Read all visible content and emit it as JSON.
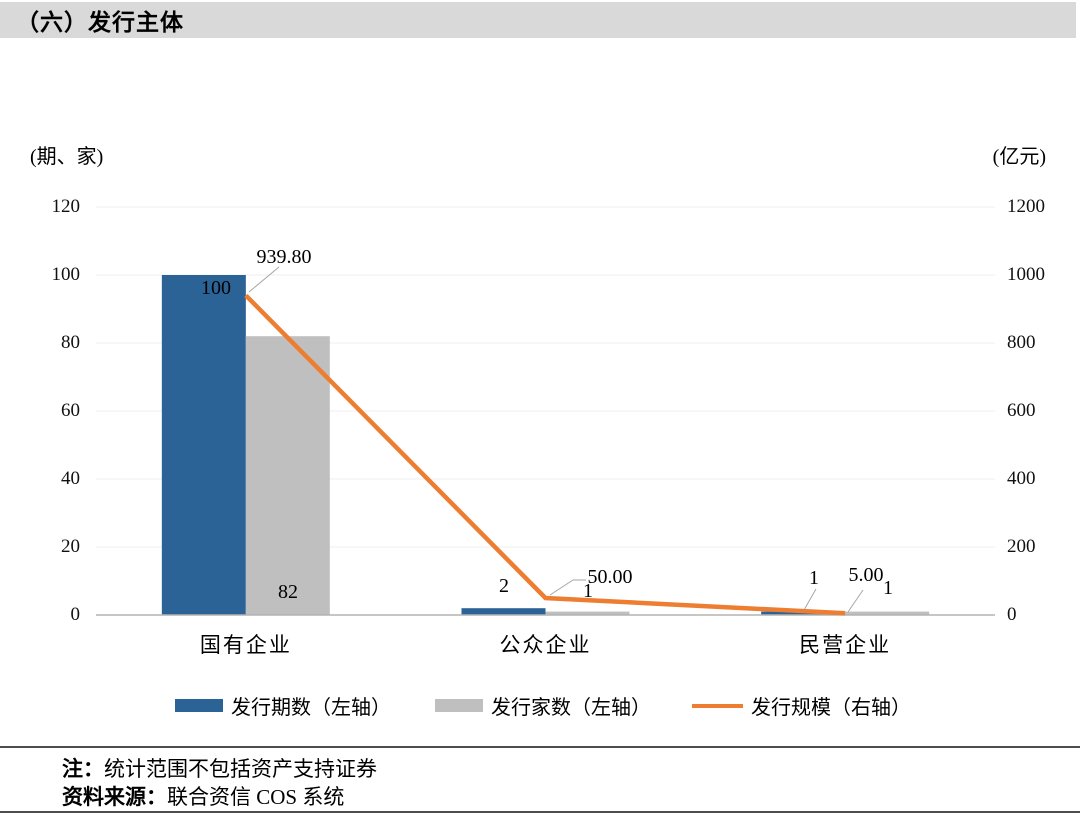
{
  "header": {
    "title": "（六）发行主体"
  },
  "chart_data": {
    "type": "combo_bar_line",
    "categories": [
      "国有企业",
      "公众企业",
      "民营企业"
    ],
    "bar_series": [
      {
        "name": "发行期数（左轴）",
        "axis": "left",
        "color": "#2C6396",
        "values": [
          100,
          2,
          1
        ],
        "labels": [
          "100",
          "2",
          "1"
        ]
      },
      {
        "name": "发行家数（左轴）",
        "axis": "left",
        "color": "#BFBFBF",
        "values": [
          82,
          1,
          1
        ],
        "labels": [
          "82",
          "1",
          "1"
        ]
      }
    ],
    "line_series": {
      "name": "发行规模（右轴）",
      "axis": "right",
      "color": "#ED7D31",
      "values": [
        939.8,
        50.0,
        5.0
      ],
      "labels": [
        "939.80",
        "50.00",
        "5.00"
      ]
    },
    "left_axis": {
      "unit": "(期、家)",
      "min": 0,
      "max": 120,
      "step": 20,
      "ticks": [
        "120",
        "100",
        "80",
        "60",
        "40",
        "20",
        "0"
      ]
    },
    "right_axis": {
      "unit": "(亿元)",
      "min": 0,
      "max": 1200,
      "step": 200,
      "ticks": [
        "1200",
        "1000",
        "800",
        "600",
        "400",
        "200",
        "0"
      ]
    },
    "legend_position": "bottom",
    "grid": true
  },
  "notes": [
    {
      "label": "注：",
      "text": "统计范围不包括资产支持证券"
    },
    {
      "label": "资料来源：",
      "text": "联合资信 COS 系统"
    }
  ]
}
